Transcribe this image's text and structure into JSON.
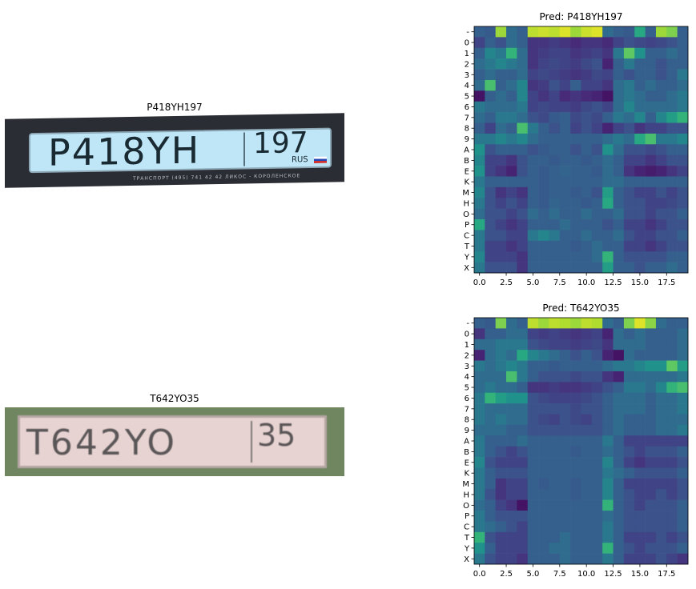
{
  "samples": [
    {
      "label": "P418YH197",
      "plate_main": "P418YH",
      "plate_region": "197",
      "plate_country": "RUS",
      "plate_footer": "ТРАНСПОРТ  (495) 741 42 42  ЛИКОС - КОРОЛЕНСКОЕ"
    },
    {
      "label": "T642YO35",
      "plate_main": "T642YO",
      "plate_region": "35"
    }
  ],
  "colormap": [
    "#440154",
    "#472d7b",
    "#3b528b",
    "#2c728e",
    "#21918c",
    "#28ae80",
    "#5ec962",
    "#addc30",
    "#fde725"
  ],
  "chart_data": [
    {
      "type": "heatmap",
      "title": "Pred: P418YH197",
      "x_ticks": [
        "0.0",
        "2.5",
        "5.0",
        "7.5",
        "10.0",
        "12.5",
        "15.0",
        "17.5"
      ],
      "x_tick_values": [
        0,
        2.5,
        5,
        7.5,
        10,
        12.5,
        15,
        17.5
      ],
      "xlim": [
        -0.5,
        19.5
      ],
      "categories": [
        "-",
        "0",
        "1",
        "2",
        "3",
        "4",
        "5",
        "6",
        "7",
        "8",
        "9",
        "A",
        "B",
        "E",
        "K",
        "M",
        "H",
        "O",
        "P",
        "C",
        "T",
        "Y",
        "X"
      ],
      "values": [
        [
          0.3,
          0.28,
          0.85,
          0.35,
          0.3,
          0.9,
          0.92,
          0.9,
          0.95,
          0.85,
          0.92,
          0.95,
          0.35,
          0.3,
          0.28,
          0.6,
          0.3,
          0.85,
          0.8,
          0.3
        ],
        [
          0.2,
          0.3,
          0.25,
          0.35,
          0.3,
          0.15,
          0.15,
          0.18,
          0.15,
          0.12,
          0.15,
          0.15,
          0.12,
          0.2,
          0.25,
          0.22,
          0.2,
          0.22,
          0.25,
          0.3
        ],
        [
          0.3,
          0.45,
          0.4,
          0.65,
          0.35,
          0.15,
          0.18,
          0.2,
          0.2,
          0.15,
          0.18,
          0.2,
          0.15,
          0.4,
          0.75,
          0.5,
          0.3,
          0.3,
          0.35,
          0.3
        ],
        [
          0.35,
          0.4,
          0.45,
          0.4,
          0.35,
          0.15,
          0.2,
          0.22,
          0.2,
          0.18,
          0.22,
          0.25,
          0.1,
          0.3,
          0.4,
          0.3,
          0.3,
          0.25,
          0.3,
          0.3
        ],
        [
          0.3,
          0.35,
          0.3,
          0.3,
          0.35,
          0.2,
          0.22,
          0.2,
          0.18,
          0.15,
          0.18,
          0.22,
          0.2,
          0.3,
          0.25,
          0.3,
          0.3,
          0.25,
          0.3,
          0.4
        ],
        [
          0.35,
          0.7,
          0.3,
          0.35,
          0.45,
          0.15,
          0.18,
          0.25,
          0.2,
          0.3,
          0.2,
          0.2,
          0.15,
          0.35,
          0.4,
          0.3,
          0.35,
          0.3,
          0.3,
          0.35
        ],
        [
          0.05,
          0.3,
          0.35,
          0.3,
          0.45,
          0.2,
          0.15,
          0.2,
          0.12,
          0.15,
          0.12,
          0.1,
          0.05,
          0.35,
          0.4,
          0.35,
          0.3,
          0.3,
          0.35,
          0.4
        ],
        [
          0.4,
          0.35,
          0.35,
          0.35,
          0.4,
          0.2,
          0.22,
          0.2,
          0.2,
          0.18,
          0.22,
          0.25,
          0.2,
          0.35,
          0.45,
          0.35,
          0.35,
          0.35,
          0.35,
          0.4
        ],
        [
          0.35,
          0.3,
          0.4,
          0.4,
          0.35,
          0.25,
          0.22,
          0.28,
          0.3,
          0.22,
          0.25,
          0.22,
          0.3,
          0.4,
          0.35,
          0.45,
          0.3,
          0.45,
          0.55,
          0.65
        ],
        [
          0.3,
          0.2,
          0.35,
          0.3,
          0.7,
          0.4,
          0.3,
          0.25,
          0.3,
          0.2,
          0.25,
          0.2,
          0.1,
          0.2,
          0.25,
          0.15,
          0.2,
          0.2,
          0.25,
          0.25
        ],
        [
          0.4,
          0.4,
          0.45,
          0.4,
          0.45,
          0.35,
          0.3,
          0.3,
          0.3,
          0.3,
          0.3,
          0.3,
          0.35,
          0.4,
          0.35,
          0.6,
          0.7,
          0.4,
          0.4,
          0.45
        ],
        [
          0.5,
          0.25,
          0.3,
          0.3,
          0.3,
          0.25,
          0.28,
          0.3,
          0.3,
          0.25,
          0.3,
          0.25,
          0.5,
          0.35,
          0.25,
          0.25,
          0.22,
          0.25,
          0.3,
          0.3
        ],
        [
          0.45,
          0.2,
          0.2,
          0.15,
          0.25,
          0.3,
          0.3,
          0.28,
          0.3,
          0.3,
          0.28,
          0.3,
          0.35,
          0.3,
          0.2,
          0.2,
          0.15,
          0.2,
          0.25,
          0.25
        ],
        [
          0.5,
          0.2,
          0.15,
          0.1,
          0.25,
          0.3,
          0.28,
          0.3,
          0.32,
          0.3,
          0.3,
          0.28,
          0.35,
          0.3,
          0.15,
          0.1,
          0.08,
          0.1,
          0.15,
          0.2
        ],
        [
          0.4,
          0.3,
          0.3,
          0.3,
          0.3,
          0.3,
          0.28,
          0.3,
          0.3,
          0.3,
          0.3,
          0.3,
          0.35,
          0.35,
          0.3,
          0.3,
          0.3,
          0.3,
          0.3,
          0.3
        ],
        [
          0.45,
          0.25,
          0.15,
          0.2,
          0.15,
          0.3,
          0.28,
          0.3,
          0.3,
          0.28,
          0.3,
          0.25,
          0.55,
          0.3,
          0.25,
          0.2,
          0.2,
          0.25,
          0.2,
          0.25
        ],
        [
          0.4,
          0.25,
          0.2,
          0.25,
          0.2,
          0.3,
          0.28,
          0.32,
          0.3,
          0.3,
          0.28,
          0.3,
          0.6,
          0.3,
          0.25,
          0.25,
          0.2,
          0.2,
          0.22,
          0.25
        ],
        [
          0.35,
          0.25,
          0.25,
          0.2,
          0.25,
          0.35,
          0.3,
          0.35,
          0.3,
          0.3,
          0.35,
          0.3,
          0.3,
          0.35,
          0.25,
          0.25,
          0.2,
          0.25,
          0.25,
          0.3
        ],
        [
          0.6,
          0.25,
          0.2,
          0.15,
          0.2,
          0.3,
          0.3,
          0.3,
          0.35,
          0.3,
          0.3,
          0.3,
          0.25,
          0.3,
          0.2,
          0.2,
          0.15,
          0.2,
          0.25,
          0.25
        ],
        [
          0.4,
          0.25,
          0.25,
          0.2,
          0.2,
          0.4,
          0.45,
          0.4,
          0.3,
          0.3,
          0.35,
          0.3,
          0.3,
          0.35,
          0.25,
          0.2,
          0.2,
          0.25,
          0.25,
          0.3
        ],
        [
          0.4,
          0.2,
          0.2,
          0.15,
          0.2,
          0.3,
          0.3,
          0.3,
          0.3,
          0.28,
          0.3,
          0.35,
          0.3,
          0.3,
          0.2,
          0.2,
          0.15,
          0.2,
          0.25,
          0.25
        ],
        [
          0.45,
          0.2,
          0.2,
          0.2,
          0.15,
          0.3,
          0.3,
          0.3,
          0.3,
          0.3,
          0.3,
          0.35,
          0.65,
          0.3,
          0.25,
          0.25,
          0.25,
          0.25,
          0.3,
          0.3
        ],
        [
          0.4,
          0.25,
          0.25,
          0.25,
          0.15,
          0.3,
          0.3,
          0.3,
          0.3,
          0.3,
          0.3,
          0.3,
          0.55,
          0.3,
          0.3,
          0.25,
          0.3,
          0.3,
          0.35,
          0.3
        ]
      ]
    },
    {
      "type": "heatmap",
      "title": "Pred: T642YO35",
      "x_ticks": [
        "0.0",
        "2.5",
        "5.0",
        "7.5",
        "10.0",
        "12.5",
        "15.0",
        "17.5"
      ],
      "x_tick_values": [
        0,
        2.5,
        5,
        7.5,
        10,
        12.5,
        15,
        17.5
      ],
      "xlim": [
        -0.5,
        19.5
      ],
      "categories": [
        "-",
        "0",
        "1",
        "2",
        "3",
        "4",
        "5",
        "6",
        "7",
        "8",
        "9",
        "A",
        "B",
        "E",
        "K",
        "M",
        "H",
        "O",
        "P",
        "C",
        "T",
        "Y",
        "X"
      ],
      "values": [
        [
          0.3,
          0.28,
          0.8,
          0.35,
          0.3,
          0.9,
          0.85,
          0.9,
          0.88,
          0.85,
          0.9,
          0.88,
          0.35,
          0.3,
          0.8,
          0.95,
          0.82,
          0.35,
          0.3,
          0.3
        ],
        [
          0.15,
          0.3,
          0.3,
          0.35,
          0.35,
          0.2,
          0.18,
          0.2,
          0.18,
          0.15,
          0.18,
          0.2,
          0.1,
          0.35,
          0.3,
          0.35,
          0.3,
          0.3,
          0.3,
          0.35
        ],
        [
          0.35,
          0.35,
          0.4,
          0.4,
          0.4,
          0.25,
          0.22,
          0.2,
          0.2,
          0.18,
          0.2,
          0.22,
          0.15,
          0.35,
          0.35,
          0.35,
          0.3,
          0.3,
          0.3,
          0.35
        ],
        [
          0.1,
          0.35,
          0.4,
          0.35,
          0.6,
          0.45,
          0.4,
          0.35,
          0.3,
          0.25,
          0.3,
          0.25,
          0.1,
          0.05,
          0.35,
          0.3,
          0.3,
          0.3,
          0.3,
          0.35
        ],
        [
          0.4,
          0.35,
          0.4,
          0.45,
          0.4,
          0.3,
          0.3,
          0.28,
          0.3,
          0.3,
          0.3,
          0.3,
          0.35,
          0.4,
          0.4,
          0.45,
          0.5,
          0.5,
          0.75,
          0.55
        ],
        [
          0.35,
          0.35,
          0.35,
          0.7,
          0.4,
          0.3,
          0.25,
          0.25,
          0.25,
          0.22,
          0.25,
          0.25,
          0.15,
          0.1,
          0.35,
          0.35,
          0.35,
          0.35,
          0.35,
          0.4
        ],
        [
          0.35,
          0.4,
          0.35,
          0.35,
          0.3,
          0.15,
          0.15,
          0.18,
          0.15,
          0.15,
          0.18,
          0.2,
          0.25,
          0.3,
          0.4,
          0.4,
          0.35,
          0.45,
          0.65,
          0.7
        ],
        [
          0.4,
          0.65,
          0.55,
          0.5,
          0.5,
          0.25,
          0.22,
          0.2,
          0.2,
          0.2,
          0.22,
          0.25,
          0.3,
          0.35,
          0.35,
          0.35,
          0.3,
          0.35,
          0.35,
          0.4
        ],
        [
          0.4,
          0.35,
          0.35,
          0.35,
          0.35,
          0.25,
          0.25,
          0.25,
          0.25,
          0.22,
          0.25,
          0.25,
          0.3,
          0.35,
          0.35,
          0.35,
          0.3,
          0.35,
          0.35,
          0.4
        ],
        [
          0.4,
          0.35,
          0.4,
          0.35,
          0.35,
          0.25,
          0.22,
          0.2,
          0.25,
          0.22,
          0.2,
          0.25,
          0.3,
          0.35,
          0.3,
          0.3,
          0.3,
          0.35,
          0.35,
          0.35
        ],
        [
          0.35,
          0.35,
          0.35,
          0.3,
          0.3,
          0.25,
          0.25,
          0.25,
          0.25,
          0.25,
          0.25,
          0.25,
          0.3,
          0.35,
          0.3,
          0.3,
          0.3,
          0.35,
          0.35,
          0.4
        ],
        [
          0.4,
          0.3,
          0.3,
          0.3,
          0.35,
          0.3,
          0.3,
          0.3,
          0.3,
          0.3,
          0.3,
          0.3,
          0.4,
          0.3,
          0.2,
          0.2,
          0.2,
          0.2,
          0.2,
          0.2
        ],
        [
          0.4,
          0.3,
          0.25,
          0.2,
          0.25,
          0.3,
          0.3,
          0.3,
          0.3,
          0.28,
          0.3,
          0.3,
          0.35,
          0.3,
          0.25,
          0.2,
          0.25,
          0.25,
          0.25,
          0.3
        ],
        [
          0.45,
          0.25,
          0.2,
          0.2,
          0.2,
          0.3,
          0.3,
          0.3,
          0.3,
          0.3,
          0.3,
          0.3,
          0.45,
          0.3,
          0.2,
          0.15,
          0.2,
          0.2,
          0.2,
          0.25
        ],
        [
          0.4,
          0.3,
          0.25,
          0.25,
          0.25,
          0.3,
          0.3,
          0.3,
          0.3,
          0.3,
          0.3,
          0.3,
          0.4,
          0.35,
          0.3,
          0.25,
          0.25,
          0.25,
          0.25,
          0.3
        ],
        [
          0.4,
          0.3,
          0.15,
          0.2,
          0.2,
          0.3,
          0.28,
          0.3,
          0.3,
          0.28,
          0.3,
          0.3,
          0.45,
          0.3,
          0.2,
          0.2,
          0.2,
          0.2,
          0.2,
          0.25
        ],
        [
          0.4,
          0.25,
          0.15,
          0.2,
          0.2,
          0.3,
          0.3,
          0.3,
          0.3,
          0.28,
          0.3,
          0.3,
          0.45,
          0.3,
          0.25,
          0.2,
          0.2,
          0.25,
          0.2,
          0.25
        ],
        [
          0.35,
          0.3,
          0.2,
          0.15,
          0.05,
          0.3,
          0.3,
          0.3,
          0.3,
          0.3,
          0.3,
          0.3,
          0.65,
          0.3,
          0.25,
          0.2,
          0.25,
          0.25,
          0.25,
          0.3
        ],
        [
          0.4,
          0.3,
          0.25,
          0.25,
          0.25,
          0.3,
          0.3,
          0.3,
          0.3,
          0.3,
          0.3,
          0.3,
          0.35,
          0.3,
          0.25,
          0.25,
          0.25,
          0.25,
          0.25,
          0.3
        ],
        [
          0.4,
          0.35,
          0.3,
          0.25,
          0.2,
          0.3,
          0.3,
          0.3,
          0.3,
          0.3,
          0.3,
          0.3,
          0.4,
          0.3,
          0.25,
          0.25,
          0.25,
          0.25,
          0.25,
          0.3
        ],
        [
          0.65,
          0.25,
          0.2,
          0.2,
          0.2,
          0.3,
          0.3,
          0.3,
          0.35,
          0.3,
          0.3,
          0.3,
          0.4,
          0.3,
          0.2,
          0.2,
          0.2,
          0.25,
          0.2,
          0.25
        ],
        [
          0.5,
          0.3,
          0.2,
          0.2,
          0.2,
          0.3,
          0.3,
          0.35,
          0.35,
          0.3,
          0.3,
          0.3,
          0.65,
          0.3,
          0.25,
          0.2,
          0.25,
          0.25,
          0.25,
          0.3
        ],
        [
          0.4,
          0.25,
          0.2,
          0.2,
          0.15,
          0.3,
          0.3,
          0.3,
          0.35,
          0.3,
          0.3,
          0.3,
          0.4,
          0.3,
          0.2,
          0.2,
          0.2,
          0.25,
          0.2,
          0.15
        ]
      ]
    }
  ]
}
